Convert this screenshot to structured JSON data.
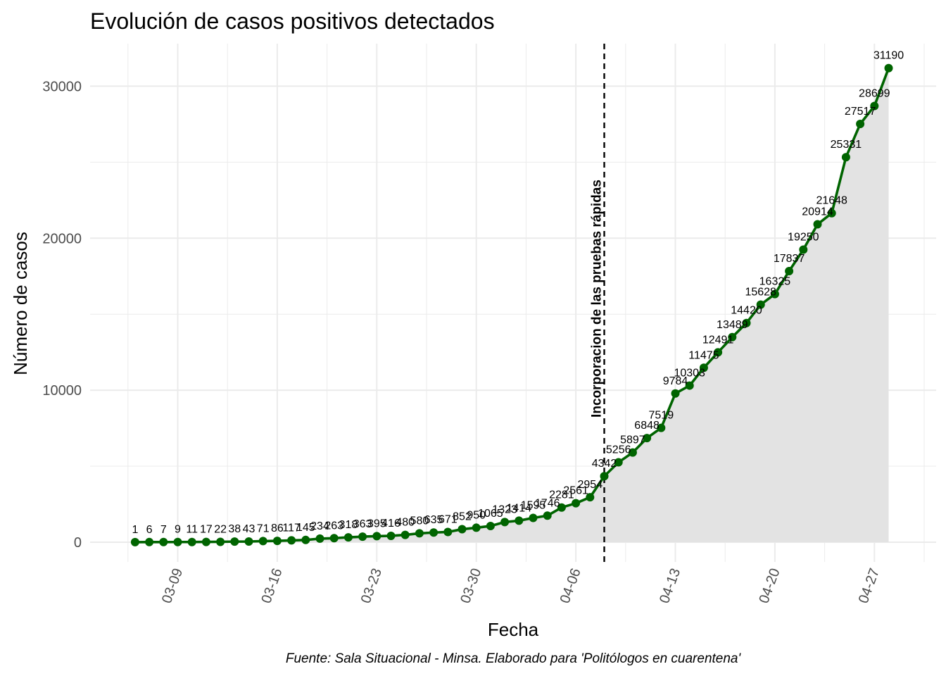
{
  "chart_data": {
    "type": "line",
    "title": "Evolución de casos positivos detectados",
    "xlabel": "Fecha",
    "ylabel": "Número de casos",
    "caption": "Fuente: Sala Situacional - Minsa. Elaborado para 'Politólogos en cuarentena'",
    "annotation": "Incorporacion de las pruebas rápidas",
    "annotation_date": "04-08",
    "x_ticks": [
      "03-09",
      "03-16",
      "03-23",
      "03-30",
      "04-06",
      "04-13",
      "04-20",
      "04-27"
    ],
    "y_ticks": [
      0,
      10000,
      20000,
      30000
    ],
    "ylim": [
      -1300,
      32800
    ],
    "grid": true,
    "area_fill": true,
    "colors": {
      "line": "#006400",
      "area": "#e3e3e3",
      "grid": "#ebebeb",
      "vline": "#000000"
    },
    "series": [
      {
        "x": [
          "03-06",
          "03-07",
          "03-08",
          "03-09",
          "03-10",
          "03-11",
          "03-12",
          "03-13",
          "03-14",
          "03-15",
          "03-16",
          "03-17",
          "03-18",
          "03-19",
          "03-20",
          "03-21",
          "03-22",
          "03-23",
          "03-24",
          "03-25",
          "03-26",
          "03-27",
          "03-28",
          "03-29",
          "03-30",
          "03-31",
          "04-01",
          "04-02",
          "04-03",
          "04-04",
          "04-05",
          "04-06",
          "04-07",
          "04-08",
          "04-09",
          "04-10",
          "04-11",
          "04-12",
          "04-13",
          "04-14",
          "04-15",
          "04-16",
          "04-17",
          "04-18",
          "04-19",
          "04-20",
          "04-21",
          "04-22",
          "04-23",
          "04-24",
          "04-25",
          "04-26",
          "04-27",
          "04-28"
        ],
        "values": [
          1,
          6,
          7,
          9,
          11,
          17,
          22,
          38,
          43,
          71,
          86,
          117,
          145,
          234,
          263,
          318,
          363,
          395,
          416,
          480,
          580,
          635,
          671,
          852,
          950,
          1065,
          1323,
          1414,
          1595,
          1746,
          2281,
          2561,
          2954,
          4342,
          5256,
          5897,
          6848,
          7519,
          9784,
          10303,
          11475,
          12491,
          13489,
          14420,
          15628,
          16325,
          17837,
          19250,
          20914,
          21648,
          25331,
          27517,
          28699,
          31190
        ],
        "labels": [
          "1",
          "6",
          "7",
          "9",
          "11",
          "17",
          "22",
          "38",
          "43",
          "71",
          "86",
          "117",
          "145",
          "234",
          "263",
          "318",
          "363",
          "395",
          "416",
          "480",
          "580",
          "635",
          "671",
          "852",
          "950",
          "1065",
          "1323",
          "1414",
          "1595",
          "1746",
          "2281",
          "2561",
          "2954",
          "4342",
          "5256",
          "5897",
          "6848",
          "7519",
          "9784",
          "10303",
          "11475",
          "12491",
          "13489",
          "14420",
          "15628",
          "16325",
          "17837",
          "19250",
          "20914",
          "21648",
          "25331",
          "27517",
          "28699",
          "31190"
        ]
      }
    ]
  }
}
